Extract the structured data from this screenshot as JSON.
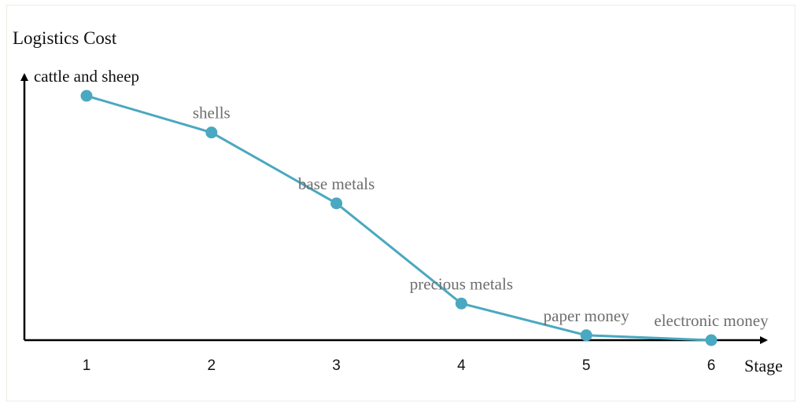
{
  "chart_data": {
    "type": "line",
    "title": "",
    "ylabel": "Logistics Cost",
    "xlabel": "Stage",
    "x": [
      1,
      2,
      3,
      4,
      5,
      6
    ],
    "ylim": [
      0,
      105
    ],
    "grid": false,
    "series": [
      {
        "values": [
          100,
          85,
          56,
          15,
          2,
          0
        ],
        "point_labels": [
          "cattle and sheep",
          "shells",
          "base metals",
          "precious metals",
          "paper money",
          "electronic money"
        ]
      }
    ],
    "colors": {
      "line": "#4aa8c0",
      "marker": "#4aa8c0",
      "first_label": "#111111",
      "other_labels": "#6e6e6e",
      "axis": "#000000"
    }
  }
}
